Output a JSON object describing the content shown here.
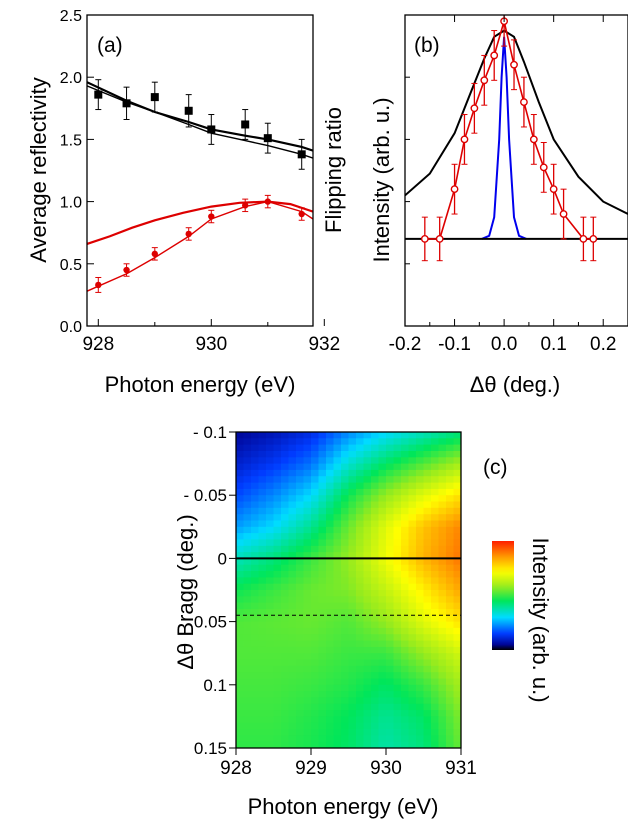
{
  "chart_data": [
    {
      "panel": "(a)",
      "type": "scatter",
      "xlabel": "Photon energy (eV)",
      "ylabel_left": "Average reflectivity",
      "ylabel_right": "Flipping ratio",
      "xlim": [
        927.8,
        931.8
      ],
      "ylim": [
        0.0,
        2.5
      ],
      "xticks": [
        928,
        930,
        932
      ],
      "yticks": [
        "0.0",
        "0.5",
        "1.0",
        "1.5",
        "2.0",
        "2.5"
      ],
      "series": [
        {
          "color": "#000000",
          "marker": "square",
          "x": [
            928.0,
            928.5,
            929.0,
            929.6,
            930.0,
            930.6,
            931.0,
            931.6
          ],
          "y": [
            1.86,
            1.79,
            1.84,
            1.73,
            1.58,
            1.62,
            1.51,
            1.38
          ],
          "err": [
            0.12,
            0.13,
            0.12,
            0.13,
            0.12,
            0.12,
            0.12,
            0.12
          ]
        },
        {
          "color": "#dd0000",
          "marker": "circle",
          "x": [
            928.0,
            928.5,
            929.0,
            929.6,
            930.0,
            930.6,
            931.0,
            931.6
          ],
          "y": [
            0.33,
            0.45,
            0.58,
            0.74,
            0.88,
            0.97,
            1.0,
            0.9
          ],
          "err": [
            0.06,
            0.05,
            0.05,
            0.05,
            0.05,
            0.05,
            0.05,
            0.05
          ]
        }
      ],
      "curves": [
        {
          "color": "#000000",
          "x": [
            927.8,
            928.5,
            929.0,
            929.6,
            930.0,
            930.6,
            931.0,
            931.6,
            931.8
          ],
          "y": [
            1.96,
            1.81,
            1.72,
            1.64,
            1.58,
            1.53,
            1.5,
            1.44,
            1.41
          ]
        },
        {
          "color": "#000000",
          "x": [
            927.8,
            928.5,
            929.0,
            929.6,
            930.0,
            930.6,
            931.0,
            931.6,
            931.8
          ],
          "y": [
            1.93,
            1.8,
            1.72,
            1.62,
            1.55,
            1.49,
            1.45,
            1.38,
            1.35
          ]
        },
        {
          "color": "#dd0000",
          "x": [
            927.8,
            928.2,
            928.6,
            929.0,
            929.5,
            930.0,
            930.5,
            931.0,
            931.4,
            931.8
          ],
          "y": [
            0.66,
            0.72,
            0.79,
            0.85,
            0.91,
            0.96,
            0.99,
            1.0,
            0.98,
            0.92
          ]
        },
        {
          "color": "#dd0000",
          "x": [
            927.8,
            928.5,
            929.0,
            929.6,
            930.0,
            930.6,
            931.0,
            931.6,
            931.8
          ],
          "y": [
            0.28,
            0.42,
            0.55,
            0.72,
            0.86,
            0.96,
            1.0,
            0.92,
            0.86
          ]
        }
      ]
    },
    {
      "panel": "(b)",
      "type": "line",
      "xlabel": "Δθ (deg.)",
      "ylabel": "Intensity (arb. u.)",
      "xlim": [
        -0.2,
        0.25
      ],
      "ylim": [
        0.0,
        1.0
      ],
      "xticks": [
        "-0.2",
        "-0.1",
        "0.0",
        "0.1",
        "0.2"
      ],
      "series": [
        {
          "color": "#000000",
          "x": [
            -0.2,
            -0.15,
            -0.1,
            -0.07,
            -0.04,
            -0.02,
            0.0,
            0.02,
            0.04,
            0.07,
            0.1,
            0.15,
            0.2,
            0.25
          ],
          "y": [
            0.42,
            0.49,
            0.62,
            0.74,
            0.86,
            0.93,
            0.95,
            0.93,
            0.85,
            0.72,
            0.6,
            0.48,
            0.4,
            0.36
          ]
        },
        {
          "color": "#0000ee",
          "x": [
            -0.045,
            -0.03,
            -0.02,
            -0.01,
            -0.005,
            0.0,
            0.005,
            0.01,
            0.02,
            0.03,
            0.045
          ],
          "y": [
            0.28,
            0.29,
            0.35,
            0.6,
            0.8,
            0.93,
            0.8,
            0.6,
            0.35,
            0.29,
            0.28
          ]
        },
        {
          "color": "#000000",
          "x": [
            -0.2,
            0.25
          ],
          "y": [
            0.28,
            0.28
          ]
        },
        {
          "color": "#dd0000",
          "marker": "circle-open",
          "x": [
            -0.16,
            -0.13,
            -0.1,
            -0.08,
            -0.06,
            -0.04,
            -0.02,
            0.0,
            0.02,
            0.04,
            0.06,
            0.08,
            0.1,
            0.12,
            0.16,
            0.18
          ],
          "y": [
            0.28,
            0.28,
            0.44,
            0.6,
            0.7,
            0.79,
            0.87,
            0.98,
            0.84,
            0.72,
            0.6,
            0.51,
            0.44,
            0.36,
            0.28,
            0.28
          ],
          "err": [
            0.07,
            0.07,
            0.08,
            0.08,
            0.08,
            0.08,
            0.08,
            0.08,
            0.08,
            0.08,
            0.08,
            0.08,
            0.08,
            0.08,
            0.07,
            0.07
          ]
        }
      ]
    },
    {
      "panel": "(c)",
      "type": "heatmap",
      "xlabel": "Photon energy (eV)",
      "ylabel": "Δθ Bragg (deg.)",
      "colorbar_label": "Intensity (arb. u.)",
      "xlim": [
        928,
        931
      ],
      "ylim": [
        -0.1,
        0.15
      ],
      "xticks": [
        "928",
        "929",
        "930",
        "931"
      ],
      "yticks": [
        "- 0.1",
        "- 0.05",
        "0",
        "0.05",
        "0.1",
        "0.15"
      ],
      "x": [
        928,
        928.5,
        929,
        929.5,
        930,
        930.5,
        931
      ],
      "y": [
        -0.1,
        -0.075,
        -0.05,
        -0.025,
        0.0,
        0.025,
        0.05,
        0.075,
        0.1,
        0.125,
        0.15
      ],
      "z": [
        [
          0.05,
          0.08,
          0.12,
          0.22,
          0.3,
          0.36,
          0.42
        ],
        [
          0.1,
          0.14,
          0.2,
          0.34,
          0.44,
          0.52,
          0.6
        ],
        [
          0.16,
          0.22,
          0.3,
          0.46,
          0.58,
          0.68,
          0.76
        ],
        [
          0.24,
          0.3,
          0.4,
          0.54,
          0.68,
          0.8,
          0.88
        ],
        [
          0.36,
          0.42,
          0.5,
          0.58,
          0.7,
          0.82,
          0.9
        ],
        [
          0.46,
          0.5,
          0.54,
          0.56,
          0.64,
          0.74,
          0.84
        ],
        [
          0.52,
          0.53,
          0.54,
          0.52,
          0.58,
          0.68,
          0.76
        ],
        [
          0.52,
          0.52,
          0.52,
          0.5,
          0.5,
          0.58,
          0.66
        ],
        [
          0.51,
          0.51,
          0.5,
          0.48,
          0.44,
          0.5,
          0.6
        ],
        [
          0.5,
          0.5,
          0.48,
          0.45,
          0.4,
          0.44,
          0.56
        ],
        [
          0.49,
          0.49,
          0.47,
          0.44,
          0.38,
          0.42,
          0.54
        ]
      ],
      "hlines": [
        {
          "y": 0.0,
          "style": "solid"
        },
        {
          "y": 0.045,
          "style": "dashed"
        }
      ]
    }
  ]
}
